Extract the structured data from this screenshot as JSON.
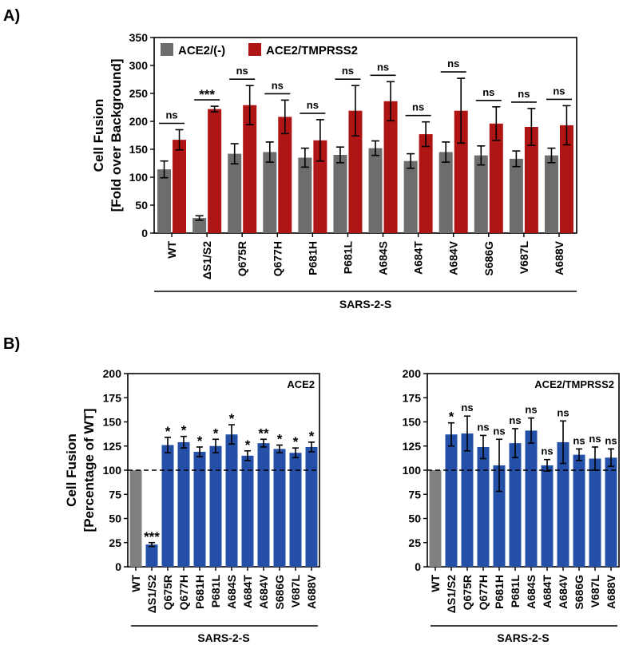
{
  "panel_labels": {
    "a": "A)",
    "b": "B)"
  },
  "chart_data": [
    {
      "id": "A",
      "type": "bar",
      "ylabel": [
        "Cell Fusion",
        "[Fold over Background]"
      ],
      "group_label": "SARS-2-S",
      "ylim": [
        0,
        350
      ],
      "yticks": [
        0,
        50,
        100,
        150,
        200,
        250,
        300,
        350
      ],
      "categories": [
        "WT",
        "ΔS1/S2",
        "Q675R",
        "Q677H",
        "P681H",
        "P681L",
        "A684S",
        "A684T",
        "A684V",
        "S686G",
        "V687L",
        "A688V"
      ],
      "colors": [
        "#6d6d6d",
        "#b01515"
      ],
      "series": [
        {
          "name": "ACE2/(-)",
          "values": [
            114,
            27,
            142,
            145,
            135,
            140,
            152,
            129,
            145,
            139,
            133,
            139
          ],
          "errors": [
            15,
            4,
            18,
            18,
            17,
            14,
            13,
            13,
            18,
            17,
            14,
            13
          ]
        },
        {
          "name": "ACE2/TMPRSS2",
          "values": [
            167,
            222,
            229,
            208,
            166,
            219,
            236,
            177,
            219,
            196,
            190,
            193
          ],
          "errors": [
            18,
            5,
            35,
            30,
            37,
            45,
            35,
            22,
            58,
            30,
            33,
            35
          ]
        }
      ],
      "significance": [
        "ns",
        "***",
        "ns",
        "ns",
        "ns",
        "ns",
        "ns",
        "ns",
        "ns",
        "ns",
        "ns",
        "ns"
      ]
    },
    {
      "id": "B-left",
      "type": "bar",
      "title": "ACE2",
      "ylabel": [
        "Cell Fusion",
        "[Percentage of WT]"
      ],
      "group_label": "SARS-2-S",
      "ylim": [
        0,
        200
      ],
      "yticks": [
        0,
        25,
        50,
        75,
        100,
        125,
        150,
        175,
        200
      ],
      "reference_line": 100,
      "categories": [
        "WT",
        "ΔS1/S2",
        "Q675R",
        "Q677H",
        "P681H",
        "P681L",
        "A684S",
        "A684T",
        "A684V",
        "S686G",
        "V687L",
        "A688V"
      ],
      "bar_colors": [
        "#808080",
        "#2450a8",
        "#2450a8",
        "#2450a8",
        "#2450a8",
        "#2450a8",
        "#2450a8",
        "#2450a8",
        "#2450a8",
        "#2450a8",
        "#2450a8",
        "#2450a8"
      ],
      "values": [
        100,
        23,
        126,
        129,
        119,
        125,
        137,
        115,
        128,
        122,
        118,
        124
      ],
      "errors": [
        0,
        2,
        8,
        6,
        5,
        7,
        10,
        5,
        4,
        4,
        5,
        5
      ],
      "significance": [
        "",
        "***",
        "*",
        "*",
        "*",
        "*",
        "*",
        "*",
        "**",
        "*",
        "*",
        "*"
      ]
    },
    {
      "id": "B-right",
      "type": "bar",
      "title": "ACE2/TMPRSS2",
      "ylabel": [],
      "group_label": "SARS-2-S",
      "ylim": [
        0,
        200
      ],
      "yticks": [
        0,
        25,
        50,
        75,
        100,
        125,
        150,
        175,
        200
      ],
      "reference_line": 100,
      "categories": [
        "WT",
        "ΔS1/S2",
        "Q675R",
        "Q677H",
        "P681H",
        "P681L",
        "A684S",
        "A684T",
        "A684V",
        "S686G",
        "V687L",
        "A688V"
      ],
      "bar_colors": [
        "#808080",
        "#2450a8",
        "#2450a8",
        "#2450a8",
        "#2450a8",
        "#2450a8",
        "#2450a8",
        "#2450a8",
        "#2450a8",
        "#2450a8",
        "#2450a8",
        "#2450a8"
      ],
      "values": [
        100,
        137,
        138,
        124,
        105,
        128,
        141,
        105,
        129,
        116,
        112,
        113
      ],
      "errors": [
        0,
        12,
        18,
        12,
        27,
        15,
        13,
        6,
        22,
        6,
        12,
        9
      ],
      "significance": [
        "",
        "*",
        "ns",
        "ns",
        "ns",
        "ns",
        "ns",
        "ns",
        "ns",
        "ns",
        "ns",
        "ns"
      ]
    }
  ]
}
